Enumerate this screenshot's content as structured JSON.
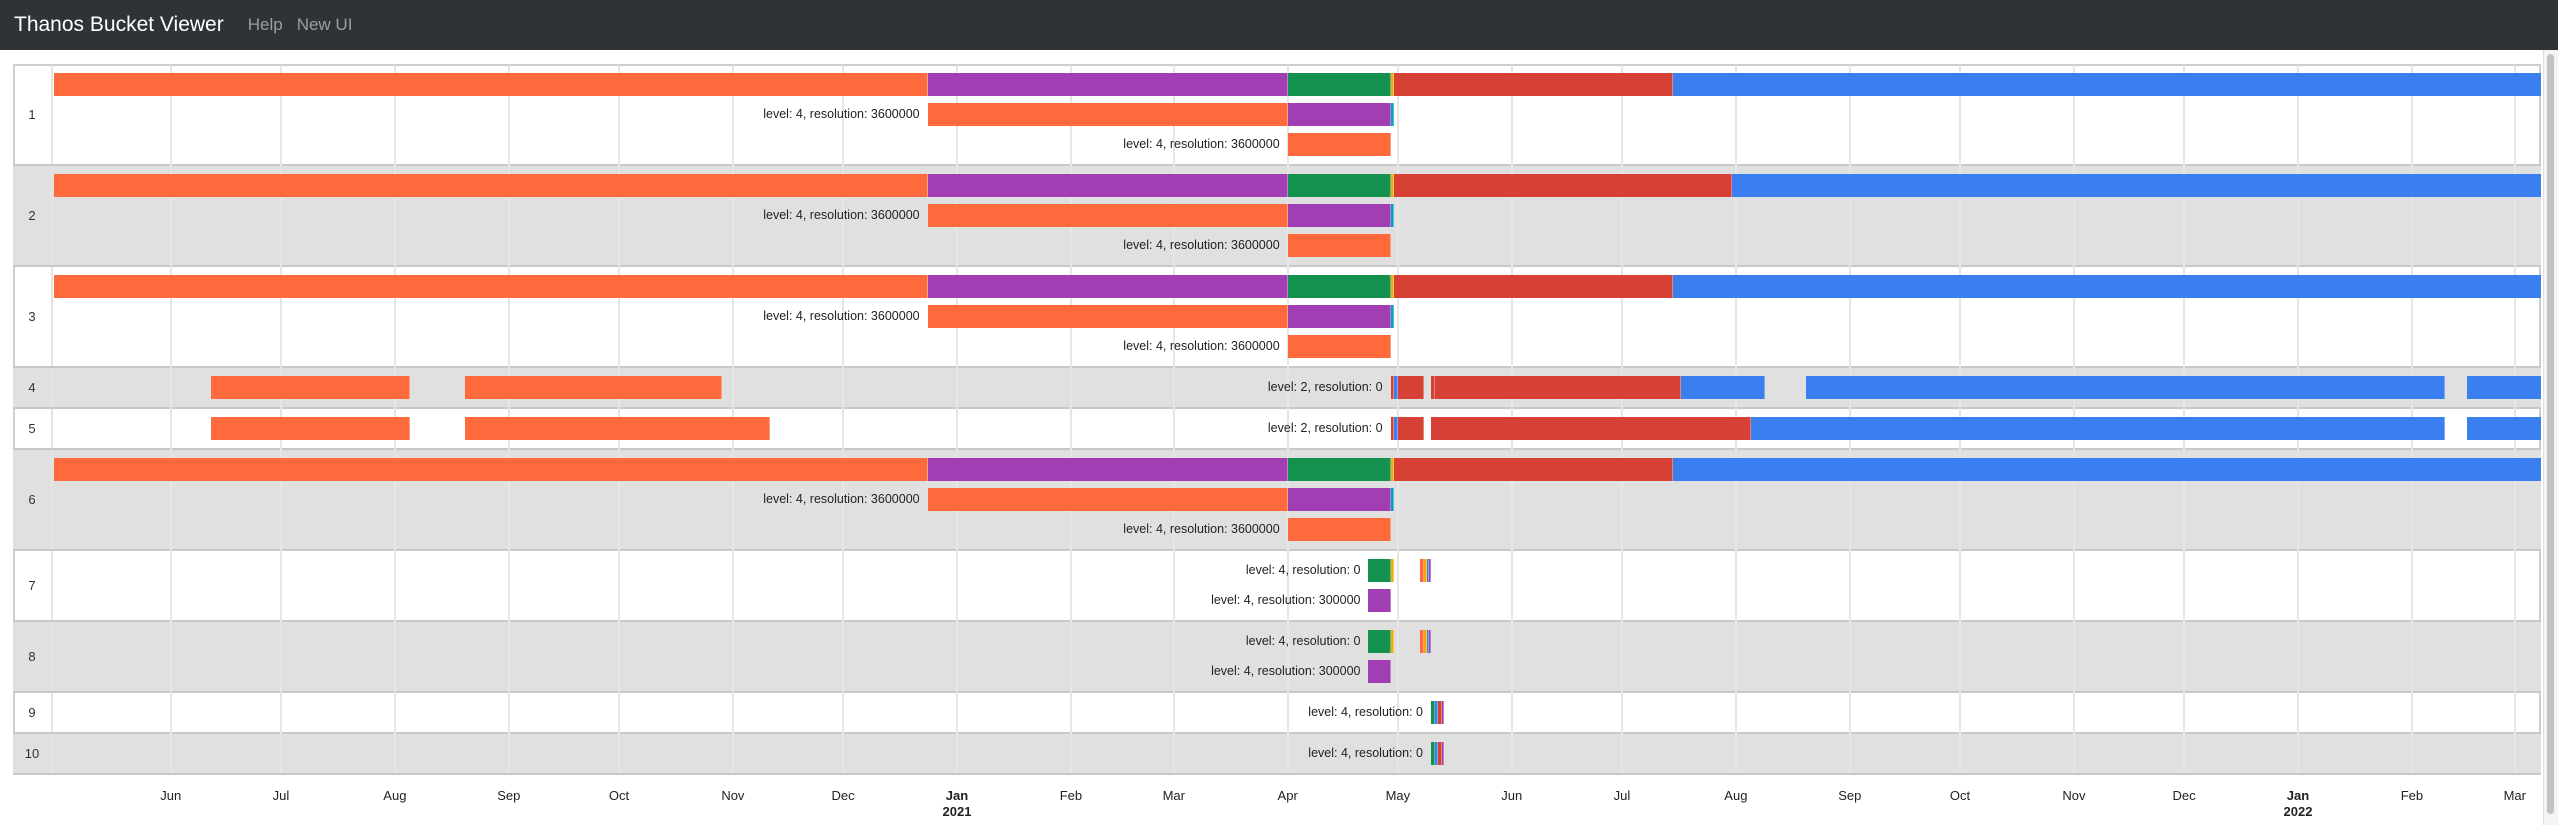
{
  "navbar": {
    "brand": "Thanos Bucket Viewer",
    "links": [
      "Help",
      "New UI"
    ]
  },
  "colors": {
    "orange": "#ff6a3d",
    "purple": "#a23eb4",
    "green": "#13924f",
    "yellow": "#f4ab00",
    "red": "#d74034",
    "blue": "#3b7ef0",
    "teal": "#00a3bf"
  },
  "axis": {
    "ticks": [
      {
        "date": "2020-06-01",
        "label": "Jun"
      },
      {
        "date": "2020-07-01",
        "label": "Jul"
      },
      {
        "date": "2020-08-01",
        "label": "Aug"
      },
      {
        "date": "2020-09-01",
        "label": "Sep"
      },
      {
        "date": "2020-10-01",
        "label": "Oct"
      },
      {
        "date": "2020-11-01",
        "label": "Nov"
      },
      {
        "date": "2020-12-01",
        "label": "Dec"
      },
      {
        "date": "2021-01-01",
        "label": "Jan",
        "year": "2021"
      },
      {
        "date": "2021-02-01",
        "label": "Feb"
      },
      {
        "date": "2021-03-01",
        "label": "Mar"
      },
      {
        "date": "2021-04-01",
        "label": "Apr"
      },
      {
        "date": "2021-05-01",
        "label": "May"
      },
      {
        "date": "2021-06-01",
        "label": "Jun"
      },
      {
        "date": "2021-07-01",
        "label": "Jul"
      },
      {
        "date": "2021-08-01",
        "label": "Aug"
      },
      {
        "date": "2021-09-01",
        "label": "Sep"
      },
      {
        "date": "2021-10-01",
        "label": "Oct"
      },
      {
        "date": "2021-11-01",
        "label": "Nov"
      },
      {
        "date": "2021-12-01",
        "label": "Dec"
      },
      {
        "date": "2022-01-01",
        "label": "Jan",
        "year": "2022"
      },
      {
        "date": "2022-02-01",
        "label": "Feb"
      },
      {
        "date": "2022-03-01",
        "label": "Mar"
      }
    ]
  },
  "rows": [
    {
      "id": "1",
      "lines": [
        {
          "label": "",
          "segments": [
            [
              "2020-04-30",
              "2020-12-24",
              "orange"
            ],
            [
              "2020-12-24",
              "2021-04-01",
              "purple"
            ],
            [
              "2021-04-01",
              "2021-04-29",
              "green"
            ],
            [
              "2021-04-29",
              "2021-04-30",
              "yellow"
            ],
            [
              "2021-04-30",
              "2021-07-15",
              "red"
            ],
            [
              "2021-07-15",
              "2022-03-20",
              "blue"
            ]
          ]
        },
        {
          "label": "level: 4, resolution: 3600000",
          "segments": [
            [
              "2020-12-24",
              "2021-04-01",
              "orange"
            ],
            [
              "2021-04-01",
              "2021-04-29",
              "purple"
            ],
            [
              "2021-04-29",
              "2021-04-30",
              "teal"
            ]
          ]
        },
        {
          "label": "level: 4, resolution: 3600000",
          "segments": [
            [
              "2021-04-01",
              "2021-04-29",
              "orange"
            ]
          ]
        }
      ]
    },
    {
      "id": "2",
      "lines": [
        {
          "label": "",
          "segments": [
            [
              "2020-04-30",
              "2020-12-24",
              "orange"
            ],
            [
              "2020-12-24",
              "2021-04-01",
              "purple"
            ],
            [
              "2021-04-01",
              "2021-04-29",
              "green"
            ],
            [
              "2021-04-29",
              "2021-04-30",
              "yellow"
            ],
            [
              "2021-04-30",
              "2021-07-31",
              "red"
            ],
            [
              "2021-07-31",
              "2022-03-20",
              "blue"
            ]
          ]
        },
        {
          "label": "level: 4, resolution: 3600000",
          "segments": [
            [
              "2020-12-24",
              "2021-04-01",
              "orange"
            ],
            [
              "2021-04-01",
              "2021-04-29",
              "purple"
            ],
            [
              "2021-04-29",
              "2021-04-30",
              "teal"
            ]
          ]
        },
        {
          "label": "level: 4, resolution: 3600000",
          "segments": [
            [
              "2021-04-01",
              "2021-04-29",
              "orange"
            ]
          ]
        }
      ]
    },
    {
      "id": "3",
      "lines": [
        {
          "label": "",
          "segments": [
            [
              "2020-04-30",
              "2020-12-24",
              "orange"
            ],
            [
              "2020-12-24",
              "2021-04-01",
              "purple"
            ],
            [
              "2021-04-01",
              "2021-04-29",
              "green"
            ],
            [
              "2021-04-29",
              "2021-04-30",
              "yellow"
            ],
            [
              "2021-04-30",
              "2021-07-15",
              "red"
            ],
            [
              "2021-07-15",
              "2022-03-20",
              "blue"
            ]
          ]
        },
        {
          "label": "level: 4, resolution: 3600000",
          "segments": [
            [
              "2020-12-24",
              "2021-04-01",
              "orange"
            ],
            [
              "2021-04-01",
              "2021-04-29",
              "purple"
            ],
            [
              "2021-04-29",
              "2021-04-30",
              "teal"
            ]
          ]
        },
        {
          "label": "level: 4, resolution: 3600000",
          "segments": [
            [
              "2021-04-01",
              "2021-04-29",
              "orange"
            ]
          ]
        }
      ]
    },
    {
      "id": "4",
      "lines": [
        {
          "label": "level: 2, resolution: 0",
          "labelAt": "2021-04-29",
          "segments": [
            [
              "2020-06-12",
              "2020-08-05",
              "orange"
            ],
            [
              "2020-08-20",
              "2020-10-29",
              "orange"
            ],
            [
              "2021-04-29",
              "2021-04-30",
              "red"
            ],
            [
              "2021-04-30",
              "2021-05-01",
              "blue"
            ],
            [
              "2021-05-01",
              "2021-05-08",
              "red"
            ],
            [
              "2021-05-10",
              "2021-05-11",
              "red"
            ],
            [
              "2021-05-11",
              "2021-07-17",
              "red"
            ],
            [
              "2021-07-17",
              "2021-08-09",
              "blue"
            ],
            [
              "2021-08-20",
              "2022-02-10",
              "blue"
            ],
            [
              "2022-02-16",
              "2022-03-20",
              "blue"
            ]
          ]
        }
      ]
    },
    {
      "id": "5",
      "lines": [
        {
          "label": "level: 2, resolution: 0",
          "labelAt": "2021-04-29",
          "segments": [
            [
              "2020-06-12",
              "2020-08-05",
              "orange"
            ],
            [
              "2020-08-20",
              "2020-11-11",
              "orange"
            ],
            [
              "2021-04-29",
              "2021-04-30",
              "red"
            ],
            [
              "2021-04-30",
              "2021-05-01",
              "blue"
            ],
            [
              "2021-05-01",
              "2021-05-08",
              "red"
            ],
            [
              "2021-05-10",
              "2021-08-05",
              "red"
            ],
            [
              "2021-08-05",
              "2022-02-10",
              "blue"
            ],
            [
              "2022-02-16",
              "2022-03-20",
              "blue"
            ]
          ]
        }
      ]
    },
    {
      "id": "6",
      "lines": [
        {
          "label": "",
          "segments": [
            [
              "2020-04-30",
              "2020-12-24",
              "orange"
            ],
            [
              "2020-12-24",
              "2021-04-01",
              "purple"
            ],
            [
              "2021-04-01",
              "2021-04-29",
              "green"
            ],
            [
              "2021-04-29",
              "2021-04-30",
              "yellow"
            ],
            [
              "2021-04-30",
              "2021-07-15",
              "red"
            ],
            [
              "2021-07-15",
              "2022-03-20",
              "blue"
            ]
          ]
        },
        {
          "label": "level: 4, resolution: 3600000",
          "segments": [
            [
              "2020-12-24",
              "2021-04-01",
              "orange"
            ],
            [
              "2021-04-01",
              "2021-04-29",
              "purple"
            ],
            [
              "2021-04-29",
              "2021-04-30",
              "teal"
            ]
          ]
        },
        {
          "label": "level: 4, resolution: 3600000",
          "segments": [
            [
              "2021-04-01",
              "2021-04-29",
              "orange"
            ]
          ]
        }
      ]
    },
    {
      "id": "7",
      "lines": [
        {
          "label": "level: 4, resolution: 0",
          "segments": [
            [
              "2021-04-23",
              "2021-04-29",
              "green"
            ],
            [
              "2021-04-29",
              "2021-04-30",
              "yellow"
            ],
            [
              "2021-05-07",
              "2021-05-08",
              "orange"
            ],
            [
              "2021-05-08",
              "2021-05-09",
              "yellow"
            ],
            [
              "2021-05-09",
              "2021-05-09T12:00",
              "blue"
            ],
            [
              "2021-05-09T12:00",
              "2021-05-10",
              "purple"
            ]
          ]
        },
        {
          "label": "level: 4, resolution: 300000",
          "segments": [
            [
              "2021-04-23",
              "2021-04-29",
              "purple"
            ]
          ]
        }
      ]
    },
    {
      "id": "8",
      "lines": [
        {
          "label": "level: 4, resolution: 0",
          "segments": [
            [
              "2021-04-23",
              "2021-04-29",
              "green"
            ],
            [
              "2021-04-29",
              "2021-04-30",
              "yellow"
            ],
            [
              "2021-05-07",
              "2021-05-08",
              "orange"
            ],
            [
              "2021-05-08",
              "2021-05-09",
              "yellow"
            ],
            [
              "2021-05-09",
              "2021-05-09T12:00",
              "blue"
            ],
            [
              "2021-05-09T12:00",
              "2021-05-10",
              "purple"
            ]
          ]
        },
        {
          "label": "level: 4, resolution: 300000",
          "segments": [
            [
              "2021-04-23",
              "2021-04-29",
              "purple"
            ]
          ]
        }
      ]
    },
    {
      "id": "9",
      "lines": [
        {
          "label": "level: 4, resolution: 0",
          "segments": [
            [
              "2021-05-10",
              "2021-05-11",
              "green"
            ],
            [
              "2021-05-11",
              "2021-05-12",
              "blue"
            ],
            [
              "2021-05-12",
              "2021-05-13",
              "red"
            ],
            [
              "2021-05-13",
              "2021-05-13T12:00",
              "purple"
            ]
          ]
        }
      ]
    },
    {
      "id": "10",
      "lines": [
        {
          "label": "level: 4, resolution: 0",
          "segments": [
            [
              "2021-05-10",
              "2021-05-11",
              "green"
            ],
            [
              "2021-05-11",
              "2021-05-12",
              "blue"
            ],
            [
              "2021-05-12",
              "2021-05-13",
              "red"
            ],
            [
              "2021-05-13",
              "2021-05-13T12:00",
              "purple"
            ]
          ]
        }
      ]
    }
  ]
}
